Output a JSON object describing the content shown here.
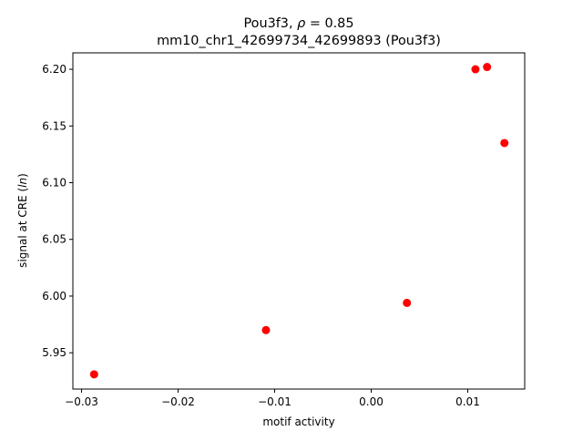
{
  "chart_data": {
    "type": "scatter",
    "title_line1_prefix": "Pou3f3, ",
    "title_rho": "ρ",
    "title_line1_suffix": " = 0.85",
    "title_line2": "mm10_chr1_42699734_42699893 (Pou3f3)",
    "xlabel": "motif activity",
    "ylabel_prefix": "signal at CRE (",
    "ylabel_italic": "ln",
    "ylabel_suffix": ")",
    "xlim": [
      -0.0309,
      0.0159
    ],
    "ylim": [
      5.918,
      6.2145
    ],
    "xticks": [
      -0.03,
      -0.02,
      -0.01,
      0.0,
      0.01
    ],
    "xtick_labels": [
      "−0.03",
      "−0.02",
      "−0.01",
      "0.00",
      "0.01"
    ],
    "yticks": [
      5.95,
      6.0,
      6.05,
      6.1,
      6.15,
      6.2
    ],
    "ytick_labels": [
      "5.95",
      "6.00",
      "6.05",
      "6.10",
      "6.15",
      "6.20"
    ],
    "grid": false,
    "marker_color": "#ff0000",
    "points": [
      {
        "x": -0.0287,
        "y": 5.931
      },
      {
        "x": -0.0109,
        "y": 5.97
      },
      {
        "x": 0.0037,
        "y": 5.994
      },
      {
        "x": 0.0108,
        "y": 6.2
      },
      {
        "x": 0.012,
        "y": 6.202
      },
      {
        "x": 0.0138,
        "y": 6.135
      }
    ]
  }
}
